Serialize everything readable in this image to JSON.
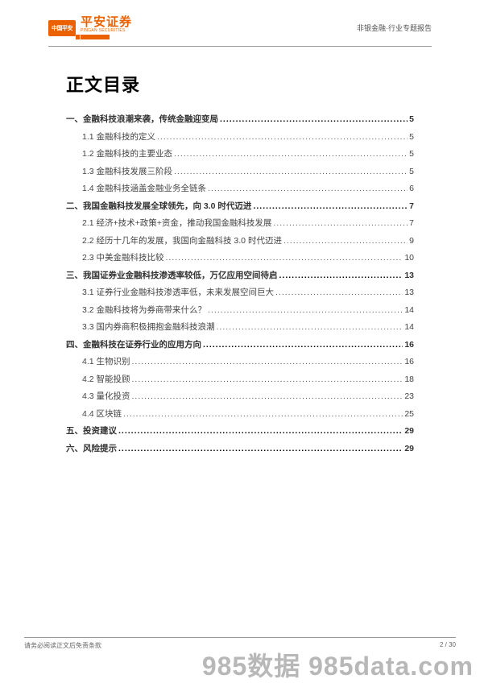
{
  "logo": {
    "badge": "中国平安",
    "main": "平安证券",
    "sub": "PINGAN SECURITIES"
  },
  "header_right": "非银金融·行业专题报告",
  "toc_title": "正文目录",
  "toc": [
    {
      "level": 1,
      "label": "一、金融科技浪潮来袭，传统金融迎变局",
      "page": "5"
    },
    {
      "level": 2,
      "label": "1.1 金融科技的定义",
      "page": "5"
    },
    {
      "level": 2,
      "label": "1.2 金融科技的主要业态",
      "page": "5"
    },
    {
      "level": 2,
      "label": "1.3 金融科技发展三阶段",
      "page": "5"
    },
    {
      "level": 2,
      "label": "1.4 金融科技涵盖金融业务全链条",
      "page": "6"
    },
    {
      "level": 1,
      "label": "二、我国金融科技发展全球领先，向 3.0 时代迈进",
      "page": "7"
    },
    {
      "level": 2,
      "label": "2.1 经济+技术+政策+资金，推动我国金融科技发展",
      "page": "7"
    },
    {
      "level": 2,
      "label": "2.2 经历十几年的发展，我国向金融科技 3.0 时代迈进",
      "page": "9"
    },
    {
      "level": 2,
      "label": "2.3 中美金融科技比较",
      "page": "10"
    },
    {
      "level": 1,
      "label": "三、我国证券业金融科技渗透率较低，万亿应用空间待启",
      "page": "13"
    },
    {
      "level": 2,
      "label": "3.1 证券行业金融科技渗透率低，未来发展空间巨大",
      "page": "13"
    },
    {
      "level": 2,
      "label": "3.2 金融科技将为券商带来什么？",
      "page": "14"
    },
    {
      "level": 2,
      "label": "3.3 国内券商积极拥抱金融科技浪潮",
      "page": "14"
    },
    {
      "level": 1,
      "label": "四、金融科技在证券行业的应用方向",
      "page": "16"
    },
    {
      "level": 2,
      "label": "4.1 生物识别",
      "page": "16"
    },
    {
      "level": 2,
      "label": "4.2 智能投顾",
      "page": "18"
    },
    {
      "level": 2,
      "label": "4.3 量化投资",
      "page": "23"
    },
    {
      "level": 2,
      "label": "4.4 区块链",
      "page": "25"
    },
    {
      "level": 1,
      "label": "五、投资建议",
      "page": "29"
    },
    {
      "level": 1,
      "label": "六、风险提示",
      "page": "29"
    }
  ],
  "footer": {
    "left": "请务必阅读正文后免责条款",
    "right": "2 / 30"
  },
  "watermark": "985数据 985data.com"
}
